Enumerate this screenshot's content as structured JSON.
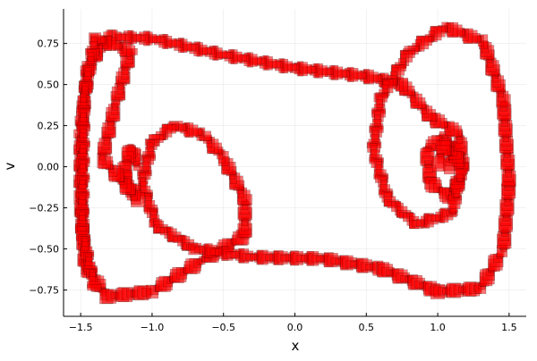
{
  "chart_data": {
    "type": "scatter",
    "mark": "rectangle",
    "xlabel": "x",
    "ylabel": "v",
    "xlim": [
      -1.62,
      1.62
    ],
    "ylim": [
      -0.91,
      0.96
    ],
    "xticks": [
      -1.5,
      -1.0,
      -0.5,
      0.0,
      0.5,
      1.0,
      1.5
    ],
    "xtick_labels": [
      "−1.5",
      "−1.0",
      "−0.5",
      "0.0",
      "0.5",
      "1.0",
      "1.5"
    ],
    "yticks": [
      -0.75,
      -0.5,
      -0.25,
      0.0,
      0.25,
      0.5,
      0.75
    ],
    "ytick_labels": [
      "−0.75",
      "−0.50",
      "−0.25",
      "0.00",
      "0.25",
      "0.50",
      "0.75"
    ],
    "grid": true,
    "legend": "none",
    "fill_color": "#ff0000",
    "stroke_color": "#000000",
    "box_width": 0.1,
    "box_height": 0.09,
    "trajectory": [
      [
        1.08,
        0.0
      ],
      [
        1.12,
        0.12
      ],
      [
        1.04,
        0.18
      ],
      [
        0.92,
        0.1
      ],
      [
        0.95,
        -0.1
      ],
      [
        1.08,
        -0.18
      ],
      [
        1.18,
        -0.05
      ],
      [
        1.15,
        0.2
      ],
      [
        0.95,
        0.3
      ],
      [
        0.75,
        0.5
      ],
      [
        0.5,
        0.55
      ],
      [
        0.0,
        0.6
      ],
      [
        -0.5,
        0.68
      ],
      [
        -1.0,
        0.78
      ],
      [
        -1.3,
        0.79
      ],
      [
        -1.45,
        0.6
      ],
      [
        -1.5,
        0.2
      ],
      [
        -1.5,
        -0.2
      ],
      [
        -1.47,
        -0.6
      ],
      [
        -1.32,
        -0.79
      ],
      [
        -1.0,
        -0.76
      ],
      [
        -0.65,
        -0.57
      ],
      [
        -0.35,
        -0.42
      ],
      [
        -0.35,
        -0.2
      ],
      [
        -0.5,
        0.05
      ],
      [
        -0.65,
        0.2
      ],
      [
        -0.85,
        0.25
      ],
      [
        -1.0,
        0.15
      ],
      [
        -1.07,
        -0.1
      ],
      [
        -0.97,
        -0.36
      ],
      [
        -0.7,
        -0.5
      ],
      [
        -0.3,
        -0.55
      ],
      [
        0.2,
        -0.56
      ],
      [
        0.6,
        -0.62
      ],
      [
        1.0,
        -0.76
      ],
      [
        1.3,
        -0.74
      ],
      [
        1.46,
        -0.5
      ],
      [
        1.5,
        -0.1
      ],
      [
        1.46,
        0.4
      ],
      [
        1.32,
        0.76
      ],
      [
        1.05,
        0.85
      ],
      [
        0.8,
        0.7
      ],
      [
        0.6,
        0.42
      ],
      [
        0.55,
        0.1
      ],
      [
        0.65,
        -0.2
      ],
      [
        0.85,
        -0.35
      ],
      [
        1.1,
        -0.28
      ],
      [
        1.17,
        0.02
      ],
      [
        1.05,
        0.13
      ],
      [
        1.0,
        0.0
      ],
      [
        -1.1,
        0.0
      ],
      [
        -1.15,
        0.12
      ],
      [
        -1.2,
        -0.05
      ],
      [
        -1.1,
        -0.2
      ],
      [
        -1.35,
        0.05
      ],
      [
        -1.25,
        0.4
      ],
      [
        -1.15,
        0.7
      ],
      [
        -1.4,
        0.78
      ],
      [
        -1.48,
        0.4
      ],
      [
        -1.49,
        -0.4
      ],
      [
        -1.4,
        -0.75
      ]
    ]
  }
}
